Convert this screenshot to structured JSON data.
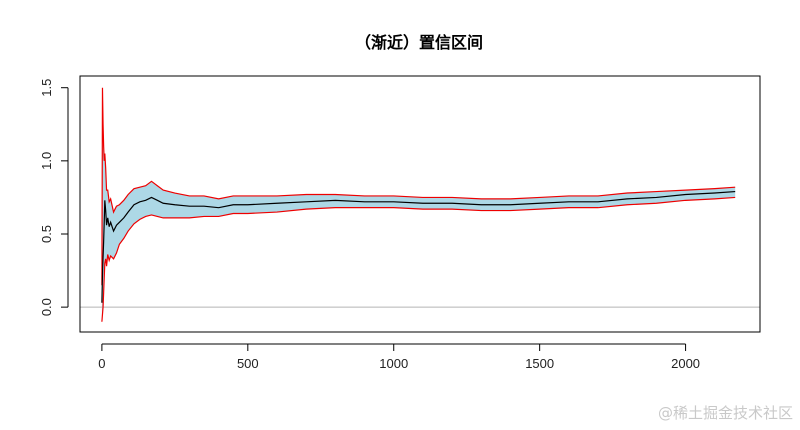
{
  "watermark": "@稀土掘金技术社区",
  "chart_data": {
    "type": "line",
    "title": "（渐近）置信区间",
    "xlabel": "",
    "ylabel": "",
    "xlim": [
      -75,
      2255
    ],
    "ylim": [
      -0.17,
      1.58
    ],
    "x_ticks": [
      0,
      500,
      1000,
      1500,
      2000
    ],
    "x_tick_labels": [
      "0",
      "500",
      "1000",
      "1500",
      "2000"
    ],
    "y_ticks": [
      0.0,
      0.5,
      1.0,
      1.5
    ],
    "y_tick_labels": [
      "0.0",
      "0.5",
      "1.0",
      "1.5"
    ],
    "reference_line": {
      "y": 0.0,
      "color": "#b5b5b5"
    },
    "grid": false,
    "legend": "none",
    "colors": {
      "band": "#add8e6",
      "bounds": "#ee0000",
      "estimate": "#000000"
    },
    "series": [
      {
        "role": "estimate",
        "x": [
          0,
          2,
          4,
          6,
          8,
          10,
          13,
          16,
          20,
          25,
          30,
          40,
          50,
          60,
          75,
          90,
          110,
          130,
          150,
          170,
          190,
          210,
          250,
          300,
          350,
          400,
          450,
          500,
          600,
          700,
          800,
          900,
          1000,
          1100,
          1200,
          1300,
          1400,
          1500,
          1600,
          1700,
          1800,
          1900,
          2000,
          2100,
          2170
        ],
        "y": [
          0.03,
          0.22,
          0.34,
          0.45,
          0.58,
          0.73,
          0.66,
          0.56,
          0.61,
          0.55,
          0.58,
          0.52,
          0.56,
          0.58,
          0.61,
          0.65,
          0.7,
          0.72,
          0.73,
          0.75,
          0.73,
          0.71,
          0.7,
          0.69,
          0.69,
          0.68,
          0.7,
          0.7,
          0.71,
          0.72,
          0.73,
          0.72,
          0.72,
          0.71,
          0.71,
          0.7,
          0.7,
          0.71,
          0.72,
          0.72,
          0.74,
          0.75,
          0.77,
          0.78,
          0.79
        ]
      },
      {
        "role": "upper",
        "x": [
          0,
          2,
          4,
          6,
          8,
          10,
          13,
          16,
          20,
          25,
          30,
          40,
          50,
          60,
          75,
          90,
          110,
          130,
          150,
          170,
          190,
          210,
          250,
          300,
          350,
          400,
          450,
          500,
          600,
          700,
          800,
          900,
          1000,
          1100,
          1200,
          1300,
          1400,
          1500,
          1600,
          1700,
          1800,
          1900,
          2000,
          2100,
          2170
        ],
        "y": [
          0.15,
          1.5,
          1.25,
          1.1,
          1.0,
          1.05,
          0.95,
          0.8,
          0.8,
          0.72,
          0.74,
          0.65,
          0.69,
          0.7,
          0.73,
          0.77,
          0.81,
          0.82,
          0.83,
          0.86,
          0.83,
          0.8,
          0.78,
          0.76,
          0.76,
          0.74,
          0.76,
          0.76,
          0.76,
          0.77,
          0.77,
          0.76,
          0.76,
          0.75,
          0.75,
          0.74,
          0.74,
          0.75,
          0.76,
          0.76,
          0.78,
          0.79,
          0.8,
          0.81,
          0.82
        ]
      },
      {
        "role": "lower",
        "x": [
          0,
          2,
          4,
          6,
          8,
          10,
          13,
          16,
          20,
          25,
          30,
          40,
          50,
          60,
          75,
          90,
          110,
          130,
          150,
          170,
          190,
          210,
          250,
          300,
          350,
          400,
          450,
          500,
          600,
          700,
          800,
          900,
          1000,
          1100,
          1200,
          1300,
          1400,
          1500,
          1600,
          1700,
          1800,
          1900,
          2000,
          2100,
          2170
        ],
        "y": [
          -0.1,
          -0.05,
          0.0,
          0.1,
          0.2,
          0.3,
          0.33,
          0.28,
          0.36,
          0.32,
          0.35,
          0.33,
          0.37,
          0.43,
          0.47,
          0.52,
          0.57,
          0.6,
          0.62,
          0.63,
          0.62,
          0.61,
          0.61,
          0.61,
          0.62,
          0.62,
          0.64,
          0.64,
          0.65,
          0.67,
          0.68,
          0.68,
          0.68,
          0.67,
          0.67,
          0.66,
          0.66,
          0.67,
          0.68,
          0.68,
          0.7,
          0.71,
          0.73,
          0.74,
          0.75
        ]
      }
    ]
  }
}
